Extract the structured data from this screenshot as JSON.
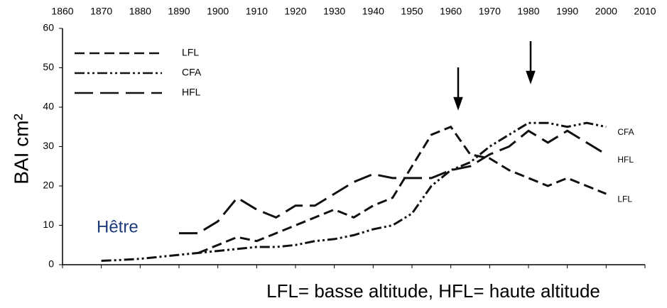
{
  "chart_data": {
    "type": "line",
    "y_label": "BAI cm²",
    "annotation": "Hêtre",
    "caption": "LFL= basse altitude, HFL= haute altitude",
    "x": [
      1870,
      1875,
      1880,
      1885,
      1890,
      1895,
      1900,
      1905,
      1910,
      1915,
      1920,
      1925,
      1930,
      1935,
      1940,
      1945,
      1950,
      1955,
      1960,
      1965,
      1970,
      1975,
      1980,
      1985,
      1990,
      1995,
      2000
    ],
    "series": [
      {
        "name": "LFL",
        "color": "#111111",
        "dash": "14,7",
        "values": [
          null,
          null,
          null,
          null,
          null,
          3,
          5,
          7,
          6,
          8,
          10,
          12,
          14,
          12,
          15,
          17,
          25,
          33,
          35,
          28,
          27,
          24,
          22,
          20,
          22,
          20,
          18
        ]
      },
      {
        "name": "CFA",
        "color": "#111111",
        "dash": "14,4,3,4,3,4",
        "values": [
          1,
          1.2,
          1.5,
          2,
          2.5,
          3,
          3.5,
          4,
          4.5,
          4.5,
          5,
          6,
          6.5,
          7.5,
          9,
          10,
          13,
          20,
          24,
          26,
          30,
          33,
          36,
          36,
          35,
          36,
          35
        ]
      },
      {
        "name": "HFL",
        "color": "#111111",
        "dash": "26,10",
        "values": [
          null,
          null,
          null,
          null,
          8,
          8,
          11,
          17,
          14,
          12,
          15,
          15,
          18,
          21,
          23,
          22,
          22,
          22,
          24,
          25,
          28,
          30,
          34,
          31,
          34,
          31,
          28
        ]
      }
    ],
    "xlim": [
      1860,
      2010
    ],
    "xticks": [
      1860,
      1870,
      1880,
      1890,
      1900,
      1910,
      1920,
      1930,
      1940,
      1950,
      1960,
      1970,
      1980,
      1990,
      2000,
      2010
    ],
    "ylim": [
      0,
      60
    ],
    "yticks": [
      0,
      10,
      20,
      30,
      40,
      50,
      60
    ]
  }
}
